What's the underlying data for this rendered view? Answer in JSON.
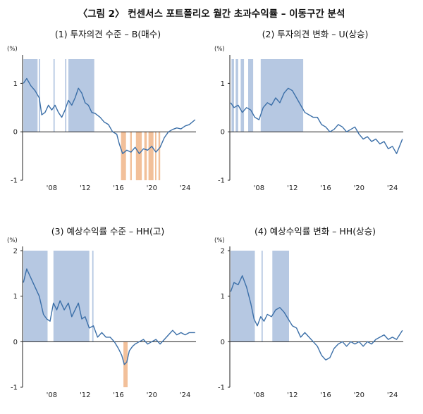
{
  "title": "〈그림 2〉 컨센서스 포트폴리오 월간 초과수익률 – 이동구간 분석",
  "colors": {
    "line": "#3b6fa8",
    "band_blue": "#b6c8e2",
    "band_orange": "#f2c09a",
    "axis": "#222222"
  },
  "chart_data": [
    {
      "type": "line",
      "title": "(1) 투자의견 수준 – B(매수)",
      "ylabel": "(%)",
      "ylim": [
        -1,
        1.5
      ],
      "yticks": [
        -1,
        0,
        1
      ],
      "xlim": [
        2004.5,
        2025.3
      ],
      "xticks": [
        2008,
        2012,
        2016,
        2020,
        2024
      ],
      "xticklabels": [
        "'08",
        "'12",
        "'16",
        "'20",
        "'24"
      ],
      "bands_blue": [
        [
          2004.6,
          2006.3
        ],
        [
          2006.45,
          2006.6
        ],
        [
          2008.2,
          2008.35
        ],
        [
          2009.6,
          2009.75
        ],
        [
          2010.0,
          2013.1
        ]
      ],
      "bands_orange": [
        [
          2016.3,
          2016.9
        ],
        [
          2017.4,
          2017.6
        ],
        [
          2018.1,
          2018.8
        ],
        [
          2019.1,
          2019.4
        ],
        [
          2019.6,
          2020.2
        ],
        [
          2020.4,
          2020.55
        ],
        [
          2020.8,
          2021.0
        ]
      ],
      "x": [
        2004.6,
        2005.0,
        2005.5,
        2006.0,
        2006.5,
        2006.8,
        2007.2,
        2007.6,
        2008.0,
        2008.4,
        2008.8,
        2009.2,
        2009.6,
        2010.0,
        2010.4,
        2010.8,
        2011.2,
        2011.6,
        2012.0,
        2012.4,
        2012.8,
        2013.2,
        2013.8,
        2014.3,
        2014.8,
        2015.3,
        2015.8,
        2016.1,
        2016.5,
        2017.0,
        2017.5,
        2018.0,
        2018.5,
        2019.0,
        2019.5,
        2020.0,
        2020.5,
        2021.0,
        2021.5,
        2022.0,
        2022.5,
        2023.0,
        2023.5,
        2024.0,
        2024.5,
        2025.2
      ],
      "y": [
        1.0,
        1.1,
        0.95,
        0.85,
        0.7,
        0.35,
        0.4,
        0.55,
        0.45,
        0.55,
        0.4,
        0.3,
        0.45,
        0.65,
        0.55,
        0.7,
        0.9,
        0.8,
        0.6,
        0.55,
        0.4,
        0.38,
        0.3,
        0.2,
        0.15,
        0.0,
        -0.05,
        -0.25,
        -0.45,
        -0.38,
        -0.42,
        -0.32,
        -0.45,
        -0.35,
        -0.38,
        -0.3,
        -0.42,
        -0.32,
        -0.12,
        0.0,
        0.05,
        0.08,
        0.06,
        0.12,
        0.15,
        0.25
      ]
    },
    {
      "type": "line",
      "title": "(2) 투자의견 변화 – U(상승)",
      "ylabel": "(%)",
      "ylim": [
        -1,
        1.5
      ],
      "yticks": [
        -1,
        0,
        1
      ],
      "xlim": [
        2004.5,
        2025.3
      ],
      "xticks": [
        2008,
        2012,
        2016,
        2020,
        2024
      ],
      "xticklabels": [
        "'08",
        "'12",
        "'16",
        "'20",
        "'24"
      ],
      "bands_blue": [
        [
          2004.7,
          2005.0
        ],
        [
          2005.2,
          2005.5
        ],
        [
          2005.8,
          2006.2
        ],
        [
          2006.7,
          2007.3
        ],
        [
          2008.2,
          2013.3
        ]
      ],
      "bands_orange": [],
      "x": [
        2004.6,
        2005.0,
        2005.5,
        2006.0,
        2006.5,
        2007.0,
        2007.5,
        2008.0,
        2008.5,
        2009.0,
        2009.5,
        2010.0,
        2010.5,
        2011.0,
        2011.5,
        2012.0,
        2012.5,
        2013.0,
        2013.5,
        2014.0,
        2014.5,
        2015.0,
        2015.5,
        2016.0,
        2016.5,
        2017.0,
        2017.5,
        2018.0,
        2018.5,
        2019.0,
        2019.5,
        2020.0,
        2020.5,
        2021.0,
        2021.5,
        2022.0,
        2022.5,
        2023.0,
        2023.5,
        2024.0,
        2024.5,
        2025.2
      ],
      "y": [
        0.6,
        0.5,
        0.55,
        0.4,
        0.5,
        0.45,
        0.3,
        0.25,
        0.5,
        0.6,
        0.55,
        0.7,
        0.6,
        0.8,
        0.9,
        0.85,
        0.7,
        0.55,
        0.4,
        0.35,
        0.3,
        0.3,
        0.15,
        0.1,
        0.0,
        0.05,
        0.15,
        0.1,
        0.0,
        0.05,
        0.1,
        -0.05,
        -0.15,
        -0.1,
        -0.2,
        -0.15,
        -0.25,
        -0.2,
        -0.35,
        -0.3,
        -0.45,
        -0.15
      ]
    },
    {
      "type": "line",
      "title": "(3) 예상수익률 수준 – HH(고)",
      "ylabel": "(%)",
      "ylim": [
        -1,
        2
      ],
      "yticks": [
        -1,
        0,
        1,
        2
      ],
      "xlim": [
        2004.5,
        2025.3
      ],
      "xticks": [
        2008,
        2012,
        2016,
        2020,
        2024
      ],
      "xticklabels": [
        "'08",
        "'12",
        "'16",
        "'20",
        "'24"
      ],
      "bands_blue": [
        [
          2004.6,
          2007.5
        ],
        [
          2008.2,
          2012.5
        ],
        [
          2012.85,
          2013.0
        ]
      ],
      "bands_orange": [
        [
          2016.6,
          2017.1
        ]
      ],
      "x": [
        2004.6,
        2005.0,
        2005.5,
        2006.0,
        2006.5,
        2007.0,
        2007.4,
        2007.8,
        2008.2,
        2008.6,
        2009.0,
        2009.5,
        2010.0,
        2010.4,
        2010.8,
        2011.2,
        2011.6,
        2012.0,
        2012.5,
        2013.0,
        2013.5,
        2014.0,
        2014.5,
        2015.0,
        2015.5,
        2016.0,
        2016.4,
        2016.7,
        2017.0,
        2017.3,
        2017.7,
        2018.0,
        2018.5,
        2019.0,
        2019.5,
        2020.0,
        2020.5,
        2021.0,
        2021.5,
        2022.0,
        2022.5,
        2023.0,
        2023.5,
        2024.0,
        2024.5,
        2025.2
      ],
      "y": [
        1.3,
        1.6,
        1.4,
        1.2,
        1.0,
        0.6,
        0.5,
        0.45,
        0.85,
        0.7,
        0.9,
        0.7,
        0.85,
        0.55,
        0.7,
        0.85,
        0.5,
        0.55,
        0.3,
        0.35,
        0.1,
        0.2,
        0.1,
        0.1,
        0.0,
        -0.15,
        -0.3,
        -0.5,
        -0.45,
        -0.2,
        -0.1,
        -0.05,
        0.0,
        0.05,
        -0.05,
        0.0,
        0.05,
        -0.05,
        0.05,
        0.15,
        0.25,
        0.15,
        0.2,
        0.15,
        0.2,
        0.2
      ]
    },
    {
      "type": "line",
      "title": "(4) 예상수익률 변화 – HH(상승)",
      "ylabel": "(%)",
      "ylim": [
        -1,
        2
      ],
      "yticks": [
        -1,
        0,
        1,
        2
      ],
      "xlim": [
        2004.5,
        2025.3
      ],
      "xticks": [
        2008,
        2012,
        2016,
        2020,
        2024
      ],
      "xticklabels": [
        "'08",
        "'12",
        "'16",
        "'20",
        "'24"
      ],
      "bands_blue": [
        [
          2004.6,
          2007.5
        ],
        [
          2008.3,
          2008.45
        ],
        [
          2009.6,
          2011.6
        ]
      ],
      "bands_orange": [],
      "x": [
        2004.6,
        2005.0,
        2005.5,
        2006.0,
        2006.5,
        2007.0,
        2007.4,
        2007.8,
        2008.2,
        2008.6,
        2009.0,
        2009.5,
        2010.0,
        2010.5,
        2011.0,
        2011.5,
        2012.0,
        2012.5,
        2013.0,
        2013.5,
        2014.0,
        2014.5,
        2015.0,
        2015.5,
        2016.0,
        2016.5,
        2017.0,
        2017.5,
        2018.0,
        2018.5,
        2019.0,
        2019.5,
        2020.0,
        2020.5,
        2021.0,
        2021.5,
        2022.0,
        2022.5,
        2023.0,
        2023.5,
        2024.0,
        2024.5,
        2025.2
      ],
      "y": [
        1.1,
        1.3,
        1.25,
        1.45,
        1.2,
        0.85,
        0.5,
        0.35,
        0.55,
        0.45,
        0.6,
        0.55,
        0.7,
        0.75,
        0.65,
        0.5,
        0.35,
        0.3,
        0.1,
        0.2,
        0.1,
        0.0,
        -0.1,
        -0.3,
        -0.4,
        -0.35,
        -0.15,
        -0.05,
        0.0,
        -0.1,
        0.0,
        -0.05,
        0.0,
        -0.1,
        0.0,
        -0.05,
        0.05,
        0.1,
        0.15,
        0.05,
        0.1,
        0.05,
        0.25
      ]
    }
  ]
}
